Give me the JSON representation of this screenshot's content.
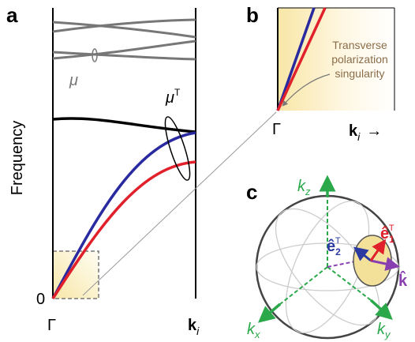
{
  "panels": {
    "a": {
      "label": "a",
      "y_axis_label": "Frequency",
      "y_origin_label": "0",
      "x_start_label": "Γ",
      "x_end_label": {
        "base": "k",
        "sub": "i"
      },
      "mode_label": "μ",
      "transverse_label": {
        "base": "μ",
        "sup": "T"
      }
    },
    "b": {
      "label": "b",
      "annotation_lines": [
        "Transverse",
        "polarization",
        "singularity"
      ],
      "x_start_label": "Γ",
      "x_end_label": {
        "base": "k",
        "sub": "i"
      },
      "arrow": "→"
    },
    "c": {
      "label": "c",
      "kz": {
        "base": "k",
        "sub": "z"
      },
      "kx": {
        "base": "k",
        "sub": "x"
      },
      "ky": {
        "base": "k",
        "sub": "y"
      },
      "e2": {
        "base": "ê",
        "sub": "2",
        "sup": "T"
      },
      "e1": {
        "base": "ê",
        "sub": "1",
        "sup": "T"
      },
      "khat": "k̂"
    }
  }
}
